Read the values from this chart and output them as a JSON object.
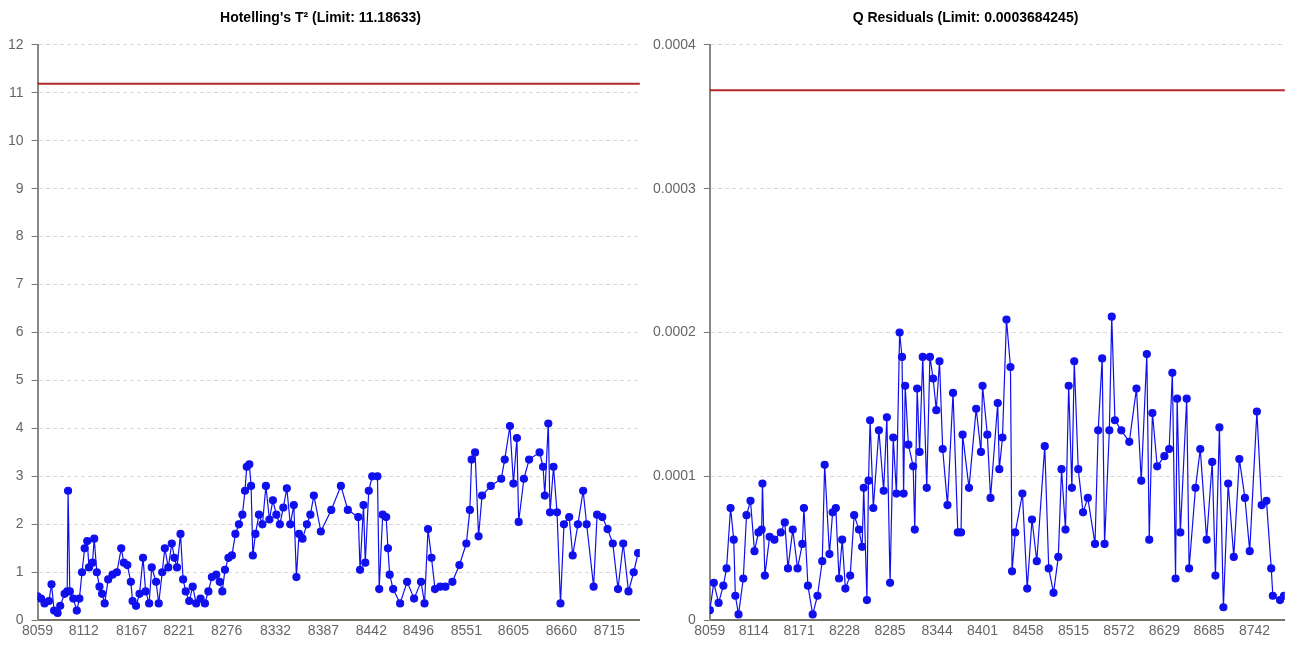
{
  "chart_data": [
    {
      "type": "line",
      "title": "Hotelling's T² (Limit: 11.18633)",
      "color": "#1010ee",
      "marker": "circle",
      "grid": "y",
      "x": [
        8059,
        8063,
        8067,
        8072,
        8075,
        8078,
        8082,
        8085,
        8090,
        8093,
        8094,
        8096,
        8100,
        8104,
        8107,
        8110,
        8113,
        8116,
        8118,
        8122,
        8124,
        8127,
        8130,
        8133,
        8136,
        8140,
        8145,
        8150,
        8155,
        8158,
        8162,
        8166,
        8168,
        8172,
        8176,
        8180,
        8183,
        8187,
        8190,
        8195,
        8198,
        8202,
        8205,
        8209,
        8213,
        8216,
        8219,
        8223,
        8226,
        8229,
        8233,
        8237,
        8241,
        8246,
        8251,
        8255,
        8259,
        8264,
        8268,
        8271,
        8274,
        8278,
        8282,
        8286,
        8290,
        8294,
        8297,
        8299,
        8302,
        8304,
        8306,
        8309,
        8313,
        8317,
        8321,
        8325,
        8329,
        8333,
        8337,
        8341,
        8345,
        8349,
        8353,
        8356,
        8359,
        8363,
        8368,
        8372,
        8376,
        8384,
        8396,
        8407,
        8415,
        8427,
        8429,
        8433,
        8435,
        8439,
        8443,
        8449,
        8451,
        8455,
        8459,
        8461,
        8463,
        8467,
        8475,
        8483,
        8491,
        8499,
        8503,
        8507,
        8511,
        8515,
        8521,
        8527,
        8535,
        8543,
        8551,
        8555,
        8557,
        8561,
        8565,
        8569,
        8579,
        8591,
        8595,
        8601,
        8605,
        8609,
        8611,
        8617,
        8623,
        8635,
        8639,
        8641,
        8645,
        8647,
        8651,
        8655,
        8659,
        8663,
        8669,
        8673,
        8679,
        8685,
        8689,
        8697,
        8701,
        8707,
        8713,
        8719,
        8725,
        8731,
        8737,
        8743,
        8748
      ],
      "values": [
        0.5,
        0.45,
        0.35,
        0.4,
        0.75,
        0.2,
        0.15,
        0.3,
        0.55,
        0.6,
        2.7,
        0.6,
        0.45,
        0.2,
        0.45,
        1.0,
        1.5,
        1.65,
        1.1,
        1.2,
        1.7,
        1.0,
        0.7,
        0.55,
        0.35,
        0.85,
        0.95,
        1.0,
        1.5,
        1.2,
        1.15,
        0.8,
        0.4,
        0.3,
        0.55,
        1.3,
        0.6,
        0.35,
        1.1,
        0.8,
        0.35,
        1.0,
        1.5,
        1.1,
        1.6,
        1.3,
        1.1,
        1.8,
        0.85,
        0.6,
        0.4,
        0.7,
        0.35,
        0.45,
        0.35,
        0.6,
        0.9,
        0.95,
        0.8,
        0.6,
        1.05,
        1.3,
        1.35,
        1.8,
        2.0,
        2.2,
        2.7,
        3.2,
        3.25,
        2.8,
        1.35,
        1.8,
        2.2,
        2.0,
        2.8,
        2.1,
        2.5,
        2.2,
        2.0,
        2.35,
        2.75,
        2.0,
        2.4,
        0.9,
        1.8,
        1.7,
        2.0,
        2.2,
        2.6,
        1.85,
        2.3,
        2.8,
        2.3,
        2.15,
        1.05,
        2.4,
        1.2,
        2.7,
        3.0,
        3.0,
        0.65,
        2.2,
        2.15,
        1.5,
        0.95,
        0.65,
        0.35,
        0.8,
        0.45,
        0.8,
        0.35,
        1.9,
        1.3,
        0.65,
        0.7,
        0.7,
        0.8,
        1.15,
        1.6,
        2.3,
        3.35,
        3.5,
        1.75,
        2.6,
        2.8,
        2.95,
        3.35,
        4.05,
        2.85,
        3.8,
        2.05,
        2.95,
        3.35,
        3.5,
        3.2,
        2.6,
        4.1,
        2.25,
        3.2,
        2.25,
        0.35,
        2.0,
        2.15,
        1.35,
        2.0,
        2.7,
        2.0,
        0.7,
        2.2,
        2.15,
        1.9,
        1.6,
        0.65,
        1.6,
        0.6,
        1.0,
        1.4
      ],
      "xlim": [
        8059,
        8750
      ],
      "xticks": [
        8059,
        8112,
        8167,
        8221,
        8276,
        8332,
        8387,
        8442,
        8496,
        8551,
        8605,
        8660,
        8715
      ],
      "ylim": [
        0,
        12
      ],
      "yticks": [
        0,
        1,
        2,
        3,
        4,
        5,
        6,
        7,
        8,
        9,
        10,
        11,
        12
      ],
      "ref_lines": [
        {
          "axis": "y",
          "value": 11.18633,
          "color": "#b02a2a"
        }
      ]
    },
    {
      "type": "line",
      "title": "Q Residuals (Limit: 0.0003684245)",
      "color": "#1010ee",
      "marker": "circle",
      "grid": "y",
      "x": [
        8059,
        8064,
        8070,
        8076,
        8080,
        8085,
        8089,
        8091,
        8095,
        8101,
        8105,
        8110,
        8115,
        8120,
        8124,
        8125,
        8128,
        8134,
        8140,
        8148,
        8153,
        8157,
        8163,
        8169,
        8175,
        8177,
        8182,
        8188,
        8194,
        8200,
        8203,
        8209,
        8213,
        8217,
        8221,
        8225,
        8229,
        8235,
        8240,
        8246,
        8250,
        8252,
        8256,
        8258,
        8260,
        8264,
        8271,
        8277,
        8281,
        8285,
        8289,
        8293,
        8297,
        8300,
        8302,
        8304,
        8308,
        8314,
        8316,
        8319,
        8322,
        8326,
        8331,
        8335,
        8339,
        8343,
        8347,
        8351,
        8357,
        8364,
        8370,
        8374,
        8376,
        8384,
        8393,
        8399,
        8401,
        8407,
        8411,
        8420,
        8422,
        8426,
        8431,
        8436,
        8438,
        8442,
        8451,
        8457,
        8463,
        8469,
        8479,
        8484,
        8490,
        8496,
        8500,
        8505,
        8509,
        8513,
        8516,
        8521,
        8527,
        8533,
        8542,
        8546,
        8551,
        8554,
        8560,
        8563,
        8567,
        8575,
        8585,
        8594,
        8600,
        8607,
        8610,
        8614,
        8620,
        8629,
        8635,
        8639,
        8643,
        8645,
        8649,
        8657,
        8660,
        8668,
        8674,
        8682,
        8689,
        8693,
        8698,
        8703,
        8709,
        8716,
        8723,
        8730,
        8736,
        8745,
        8751,
        8757,
        8763,
        8765,
        8774,
        8779
      ],
      "values": [
        7e-06,
        2.6e-05,
        1.2e-05,
        2.4e-05,
        3.6e-05,
        7.8e-05,
        5.6e-05,
        1.7e-05,
        4e-06,
        2.9e-05,
        7.3e-05,
        8.3e-05,
        4.8e-05,
        6.1e-05,
        6.3e-05,
        9.5e-05,
        3.1e-05,
        5.8e-05,
        5.6e-05,
        6.1e-05,
        6.8e-05,
        3.6e-05,
        6.3e-05,
        3.6e-05,
        5.3e-05,
        7.8e-05,
        2.4e-05,
        4e-06,
        1.7e-05,
        4.1e-05,
        0.000108,
        4.6e-05,
        7.5e-05,
        7.8e-05,
        2.9e-05,
        5.6e-05,
        2.2e-05,
        3.1e-05,
        7.3e-05,
        6.3e-05,
        5.1e-05,
        9.2e-05,
        1.4e-05,
        9.7e-05,
        0.000139,
        7.8e-05,
        0.000132,
        9e-05,
        0.000141,
        2.6e-05,
        0.000127,
        8.8e-05,
        0.0002,
        0.000183,
        8.8e-05,
        0.000163,
        0.000122,
        0.000107,
        6.3e-05,
        0.000161,
        0.000117,
        0.000183,
        9.2e-05,
        0.000183,
        0.000168,
        0.000146,
        0.00018,
        0.000119,
        8e-05,
        0.000158,
        6.1e-05,
        6.1e-05,
        0.000129,
        9.2e-05,
        0.000147,
        0.000117,
        0.000163,
        0.000129,
        8.5e-05,
        0.000151,
        0.000105,
        0.000127,
        0.000209,
        0.000176,
        3.4e-05,
        6.1e-05,
        8.8e-05,
        2.2e-05,
        7e-05,
        4.1e-05,
        0.000121,
        3.6e-05,
        1.9e-05,
        4.4e-05,
        0.000105,
        6.3e-05,
        0.000163,
        9.2e-05,
        0.00018,
        0.000105,
        7.5e-05,
        8.5e-05,
        5.3e-05,
        0.000132,
        0.000182,
        5.3e-05,
        0.000132,
        0.000211,
        0.000139,
        0.000132,
        0.000124,
        0.000161,
        9.7e-05,
        0.000185,
        5.6e-05,
        0.000144,
        0.000107,
        0.000114,
        0.000119,
        0.000172,
        2.9e-05,
        0.000154,
        6.1e-05,
        0.000154,
        3.6e-05,
        9.2e-05,
        0.000119,
        5.6e-05,
        0.00011,
        3.1e-05,
        0.000134,
        9e-06,
        9.5e-05,
        4.4e-05,
        0.000112,
        8.5e-05,
        4.8e-05,
        0.000145,
        8e-05,
        8.3e-05,
        3.6e-05,
        1.7e-05,
        1.4e-05,
        1.7e-05
      ],
      "xlim": [
        8059,
        8780
      ],
      "xticks": [
        8059,
        8114,
        8171,
        8228,
        8285,
        8344,
        8401,
        8458,
        8515,
        8572,
        8629,
        8685,
        8742
      ],
      "ylim": [
        0,
        0.0004
      ],
      "yticks": [
        0,
        0.0001,
        0.0002,
        0.0003,
        0.0004
      ],
      "ref_lines": [
        {
          "axis": "y",
          "value": 0.0003684245,
          "color": "#b02a2a"
        }
      ]
    }
  ]
}
